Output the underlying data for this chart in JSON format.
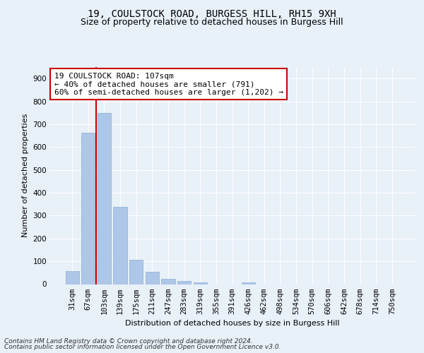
{
  "title1": "19, COULSTOCK ROAD, BURGESS HILL, RH15 9XH",
  "title2": "Size of property relative to detached houses in Burgess Hill",
  "xlabel": "Distribution of detached houses by size in Burgess Hill",
  "ylabel": "Number of detached properties",
  "categories": [
    "31sqm",
    "67sqm",
    "103sqm",
    "139sqm",
    "175sqm",
    "211sqm",
    "247sqm",
    "283sqm",
    "319sqm",
    "355sqm",
    "391sqm",
    "426sqm",
    "462sqm",
    "498sqm",
    "534sqm",
    "570sqm",
    "606sqm",
    "642sqm",
    "678sqm",
    "714sqm",
    "750sqm"
  ],
  "values": [
    57,
    662,
    750,
    337,
    108,
    54,
    24,
    14,
    8,
    0,
    0,
    8,
    0,
    0,
    0,
    0,
    0,
    0,
    0,
    0,
    0
  ],
  "bar_color": "#aec6e8",
  "bar_edge_color": "#8ab0d0",
  "annotation_text": "19 COULSTOCK ROAD: 107sqm\n← 40% of detached houses are smaller (791)\n60% of semi-detached houses are larger (1,202) →",
  "annotation_box_color": "#ffffff",
  "annotation_box_edge_color": "#cc0000",
  "red_line_index": 2,
  "ylim": [
    0,
    950
  ],
  "yticks": [
    0,
    100,
    200,
    300,
    400,
    500,
    600,
    700,
    800,
    900
  ],
  "footer1": "Contains HM Land Registry data © Crown copyright and database right 2024.",
  "footer2": "Contains public sector information licensed under the Open Government Licence v3.0.",
  "bg_color": "#e8f0f8",
  "plot_bg_color": "#e8f0f8",
  "grid_color": "#ffffff",
  "title_fontsize": 10,
  "subtitle_fontsize": 9,
  "axis_label_fontsize": 8,
  "tick_fontsize": 7.5,
  "annotation_fontsize": 8,
  "footer_fontsize": 6.5
}
